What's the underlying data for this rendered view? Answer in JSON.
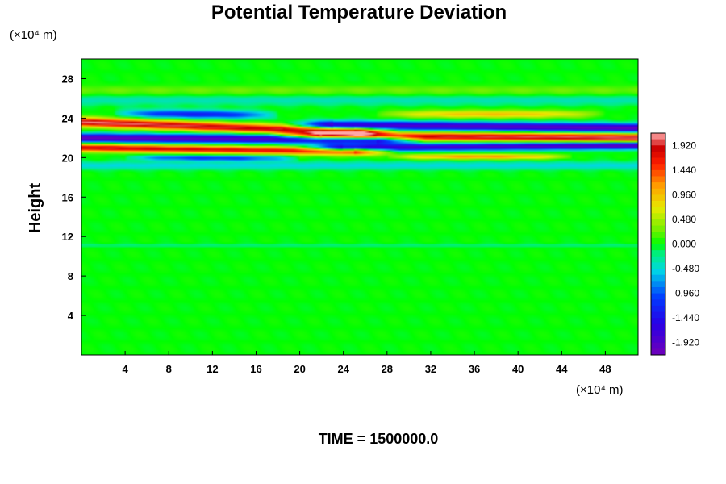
{
  "chart_data": {
    "type": "heatmap",
    "title": "Potential Temperature Deviation",
    "ylabel": "Height",
    "xlabel": "",
    "x_unit": "(×10⁴ m)",
    "y_unit": "(×10⁴ m)",
    "xlim": [
      0,
      51
    ],
    "ylim": [
      0,
      30
    ],
    "x_ticks": [
      "4",
      "8",
      "12",
      "16",
      "20",
      "24",
      "28",
      "32",
      "36",
      "40",
      "44",
      "48"
    ],
    "y_ticks": [
      "4",
      "8",
      "12",
      "16",
      "20",
      "24",
      "28"
    ],
    "colorbar": {
      "range": [
        -2.16,
        2.16
      ],
      "ticks": [
        "1.920",
        "1.440",
        "0.960",
        "0.480",
        "0.000",
        "-0.480",
        "-0.960",
        "-1.440",
        "-1.920"
      ]
    },
    "features": [
      {
        "x": [
          0,
          25
        ],
        "y_center": [
          23.6,
          22.6
        ],
        "amplitude": 2.1,
        "half_thickness": 0.45,
        "shape": "left"
      },
      {
        "x": [
          0,
          27
        ],
        "y_center": [
          22.0,
          21.8
        ],
        "amplitude": -2.1,
        "half_thickness": 0.42,
        "shape": "left"
      },
      {
        "x": [
          0,
          25
        ],
        "y_center": [
          21.0,
          20.6
        ],
        "amplitude": 1.9,
        "half_thickness": 0.38,
        "shape": "left"
      },
      {
        "x": [
          3,
          18
        ],
        "y_center": [
          24.5,
          24.3
        ],
        "amplitude": -1.3,
        "half_thickness": 0.42,
        "shape": "lens"
      },
      {
        "x": [
          4,
          20
        ],
        "y_center": [
          20.0,
          19.9
        ],
        "amplitude": -1.1,
        "half_thickness": 0.28,
        "shape": "lens"
      },
      {
        "x": [
          23,
          51
        ],
        "y_center": [
          23.3,
          23.0
        ],
        "amplitude": -2.1,
        "half_thickness": 0.42,
        "shape": "right"
      },
      {
        "x": [
          22,
          51
        ],
        "y_center": [
          22.2,
          22.0
        ],
        "amplitude": 2.1,
        "half_thickness": 0.4,
        "shape": "right"
      },
      {
        "x": [
          24,
          51
        ],
        "y_center": [
          21.0,
          21.2
        ],
        "amplitude": -2.0,
        "half_thickness": 0.35,
        "shape": "right"
      },
      {
        "x": [
          27,
          48
        ],
        "y_center": [
          24.4,
          24.4
        ],
        "amplitude": 0.95,
        "half_thickness": 0.38,
        "shape": "lens"
      },
      {
        "x": [
          28,
          45
        ],
        "y_center": [
          20.1,
          20.1
        ],
        "amplitude": 1.2,
        "half_thickness": 0.25,
        "shape": "lens"
      },
      {
        "x": [
          0,
          51
        ],
        "y_center": [
          25.8,
          25.8
        ],
        "amplitude": -0.35,
        "half_thickness": 0.5,
        "shape": "flat"
      },
      {
        "x": [
          0,
          51
        ],
        "y_center": [
          19.2,
          19.2
        ],
        "amplitude": -0.5,
        "half_thickness": 0.4,
        "shape": "flat"
      },
      {
        "x": [
          0,
          51
        ],
        "y_center": [
          26.8,
          26.8
        ],
        "amplitude": 0.25,
        "half_thickness": 0.5,
        "shape": "flat"
      },
      {
        "x": [
          0,
          51
        ],
        "y_center": [
          11.1,
          11.1
        ],
        "amplitude": -0.18,
        "half_thickness": 0.18,
        "shape": "flat"
      }
    ],
    "time_label": "TIME = 1500000.0"
  }
}
